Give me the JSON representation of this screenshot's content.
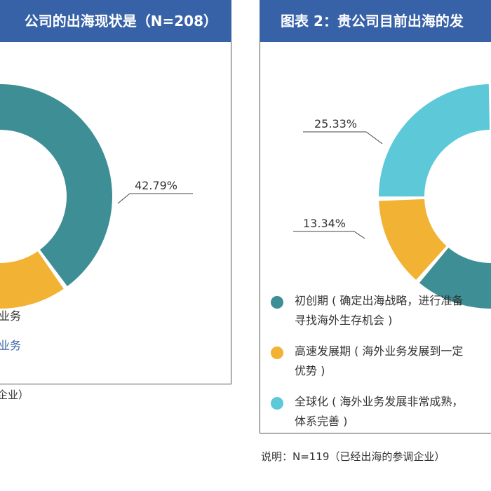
{
  "panel1": {
    "title": "公司的出海现状是（N=208）",
    "legend_fragments": [
      "业务",
      "业务"
    ],
    "note_fragment": "企业）"
  },
  "panel2": {
    "title": "图表 2：贵公司目前出海的发",
    "legend": [
      {
        "label_line1": "初创期 ( 确定出海战略，进行准备",
        "label_line2": "寻找海外生存机会 )",
        "color": "#3e8e96"
      },
      {
        "label_line1": "高速发展期 ( 海外业务发展到一定",
        "label_line2": "优势 )",
        "color": "#f2b233"
      },
      {
        "label_line1": "全球化 ( 海外业务发展非常成熟，",
        "label_line2": "体系完善 )",
        "color": "#5cc8d8"
      }
    ],
    "note": "说明：N=119（已经出海的参调企业）"
  },
  "chart_data": [
    {
      "type": "pie",
      "series": [
        {
          "value": 42.79,
          "label": "42.79%",
          "color": "#3e8e96"
        },
        {
          "value": 22.0,
          "label": "",
          "color": "#f2b233"
        },
        {
          "value": 35.21,
          "label": "",
          "color": "#3e8e96"
        }
      ]
    },
    {
      "type": "pie",
      "series": [
        {
          "value": 61.33,
          "label": "",
          "color": "#3e8e96"
        },
        {
          "value": 13.34,
          "label": "13.34%",
          "color": "#f2b233"
        },
        {
          "value": 25.33,
          "label": "25.33%",
          "color": "#5cc8d8"
        }
      ]
    }
  ]
}
